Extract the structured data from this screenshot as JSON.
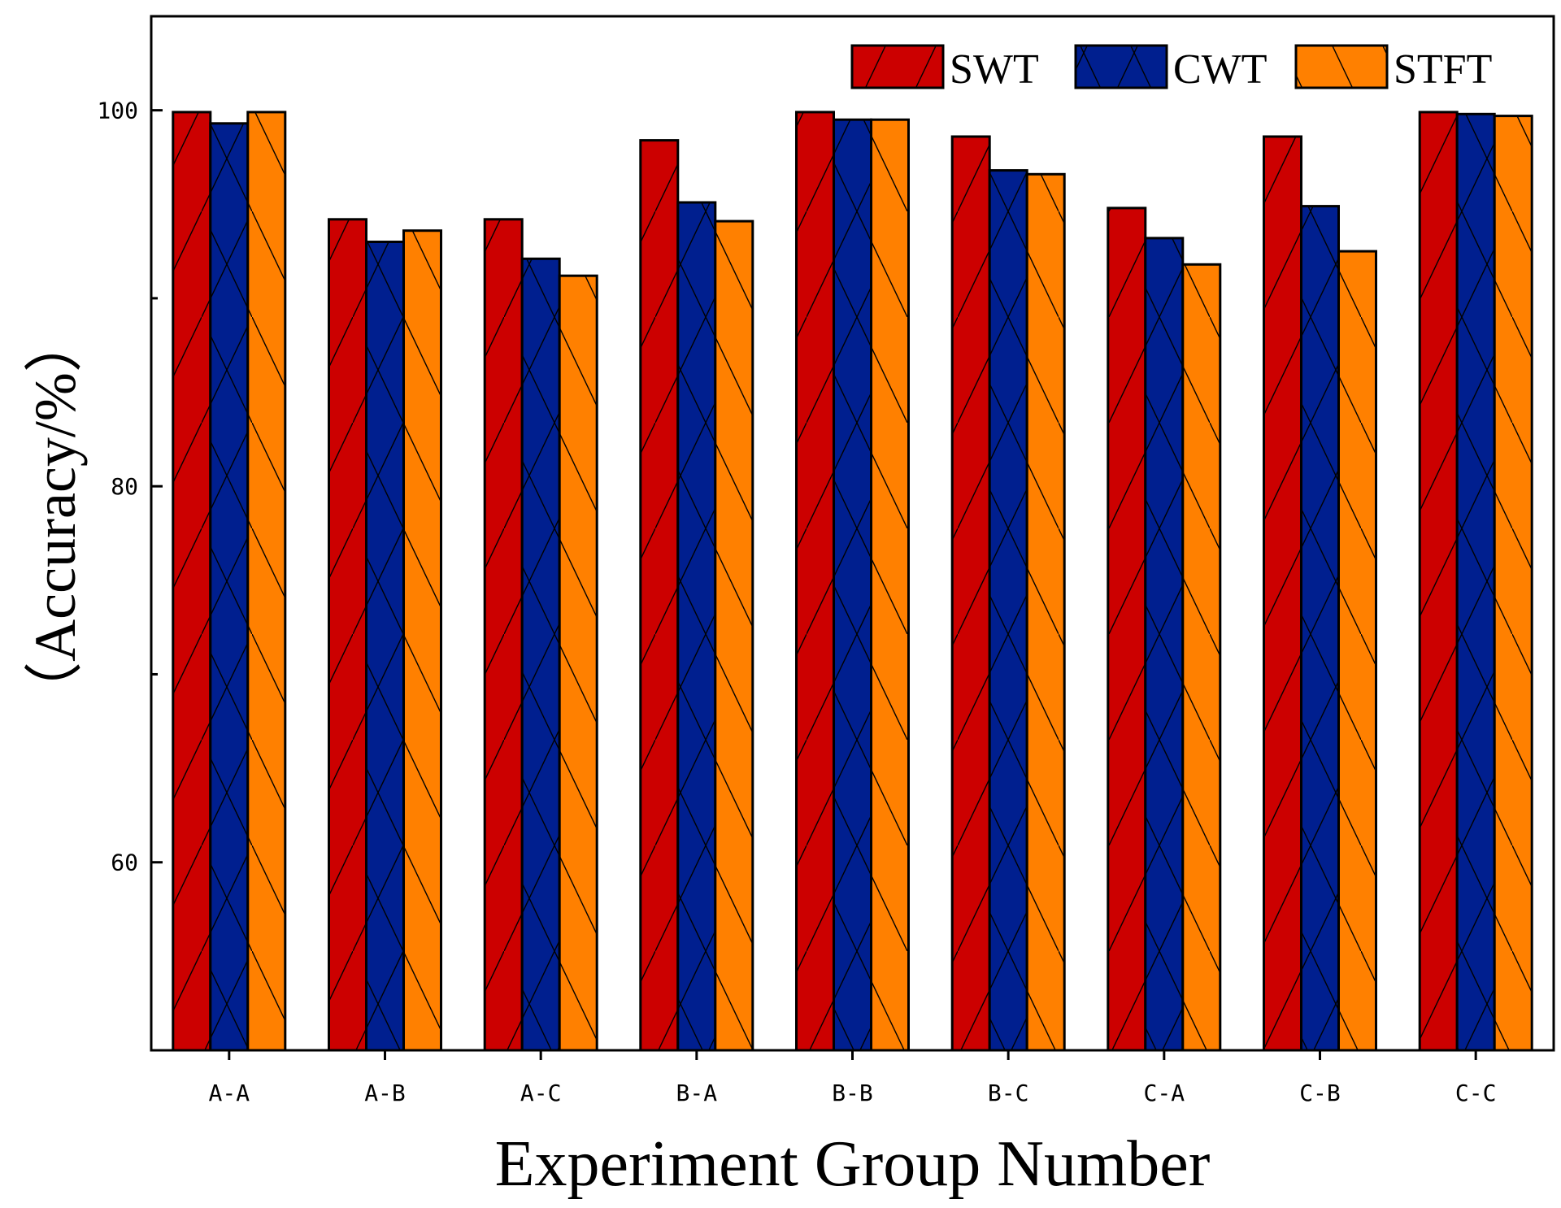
{
  "chart_data": {
    "type": "bar",
    "title": "",
    "xlabel": "Experiment Group Number",
    "ylabel": "（Accuracy/%）",
    "categories": [
      "A-A",
      "A-B",
      "A-C",
      "B-A",
      "B-B",
      "B-C",
      "C-A",
      "C-B",
      "C-C"
    ],
    "series": [
      {
        "name": "SWT",
        "color": "#cc0000",
        "hatch": "forward-diagonal",
        "values": [
          99.9,
          94.2,
          94.2,
          98.4,
          99.9,
          98.6,
          94.8,
          98.6,
          99.9
        ]
      },
      {
        "name": "CWT",
        "color": "#001f8f",
        "hatch": "cross-diagonal",
        "values": [
          99.3,
          93.0,
          92.1,
          95.1,
          99.5,
          96.8,
          93.2,
          94.9,
          99.8
        ]
      },
      {
        "name": "STFT",
        "color": "#ff8000",
        "hatch": "back-diagonal",
        "values": [
          99.9,
          93.6,
          91.2,
          94.1,
          99.5,
          96.6,
          91.8,
          92.5,
          99.7
        ]
      }
    ],
    "ylim": [
      50,
      105
    ],
    "yticks": [
      60,
      80,
      100
    ],
    "legend": {
      "position": "top-right",
      "entries": [
        "SWT",
        "CWT",
        "STFT"
      ]
    },
    "grid": false
  }
}
